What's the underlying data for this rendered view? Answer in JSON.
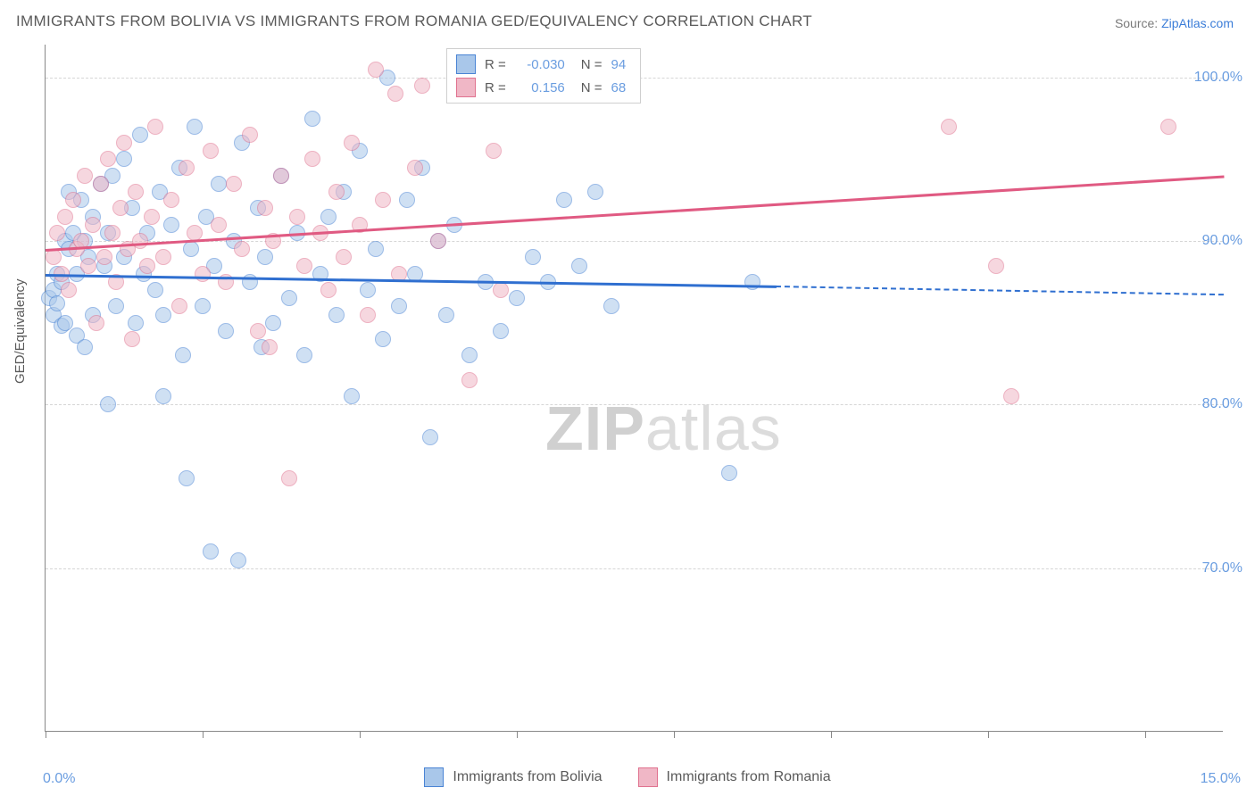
{
  "title": "IMMIGRANTS FROM BOLIVIA VS IMMIGRANTS FROM ROMANIA GED/EQUIVALENCY CORRELATION CHART",
  "source": {
    "label": "Source: ",
    "site": "ZipAtlas.com"
  },
  "watermark": {
    "zip": "ZIP",
    "atlas": "atlas"
  },
  "ylabel": "GED/Equivalency",
  "chart": {
    "type": "scatter",
    "xlim": [
      0,
      15
    ],
    "ylim": [
      60,
      102
    ],
    "x_ticks": [
      0,
      2,
      4,
      6,
      8,
      10,
      12,
      14
    ],
    "x_tick_labels": {
      "min": "0.0%",
      "max": "15.0%"
    },
    "y_ticks": [
      70,
      80,
      90,
      100
    ],
    "y_tick_labels": [
      "70.0%",
      "80.0%",
      "90.0%",
      "100.0%"
    ],
    "grid_color": "#d6d6d6",
    "background_color": "#ffffff",
    "axis_color": "#888888"
  },
  "series": [
    {
      "name": "Immigrants from Bolivia",
      "fill": "#a9c7ea",
      "stroke": "#4a84d4",
      "line_color": "#2f6fd0",
      "r_value": "-0.030",
      "n_value": "94",
      "regression": {
        "x1": 0,
        "y1": 88.0,
        "x2_solid": 9.3,
        "y2_solid": 87.3,
        "x2": 15,
        "y2": 86.8
      },
      "points": [
        [
          0.05,
          86.5
        ],
        [
          0.1,
          87.0
        ],
        [
          0.1,
          85.5
        ],
        [
          0.15,
          88.0
        ],
        [
          0.15,
          86.2
        ],
        [
          0.2,
          87.5
        ],
        [
          0.2,
          84.8
        ],
        [
          0.25,
          90.0
        ],
        [
          0.25,
          85.0
        ],
        [
          0.3,
          89.5
        ],
        [
          0.3,
          93.0
        ],
        [
          0.35,
          90.5
        ],
        [
          0.4,
          88.0
        ],
        [
          0.4,
          84.2
        ],
        [
          0.45,
          92.5
        ],
        [
          0.5,
          90.0
        ],
        [
          0.5,
          83.5
        ],
        [
          0.55,
          89.0
        ],
        [
          0.6,
          91.5
        ],
        [
          0.6,
          85.5
        ],
        [
          0.7,
          93.5
        ],
        [
          0.75,
          88.5
        ],
        [
          0.8,
          90.5
        ],
        [
          0.8,
          80.0
        ],
        [
          0.85,
          94.0
        ],
        [
          0.9,
          86.0
        ],
        [
          1.0,
          95.0
        ],
        [
          1.0,
          89.0
        ],
        [
          1.1,
          92.0
        ],
        [
          1.15,
          85.0
        ],
        [
          1.2,
          96.5
        ],
        [
          1.25,
          88.0
        ],
        [
          1.3,
          90.5
        ],
        [
          1.4,
          87.0
        ],
        [
          1.45,
          93.0
        ],
        [
          1.5,
          85.5
        ],
        [
          1.5,
          80.5
        ],
        [
          1.6,
          91.0
        ],
        [
          1.7,
          94.5
        ],
        [
          1.75,
          83.0
        ],
        [
          1.8,
          75.5
        ],
        [
          1.85,
          89.5
        ],
        [
          1.9,
          97.0
        ],
        [
          2.0,
          86.0
        ],
        [
          2.05,
          91.5
        ],
        [
          2.1,
          71.0
        ],
        [
          2.15,
          88.5
        ],
        [
          2.2,
          93.5
        ],
        [
          2.3,
          84.5
        ],
        [
          2.4,
          90.0
        ],
        [
          2.45,
          70.5
        ],
        [
          2.5,
          96.0
        ],
        [
          2.6,
          87.5
        ],
        [
          2.7,
          92.0
        ],
        [
          2.75,
          83.5
        ],
        [
          2.8,
          89.0
        ],
        [
          2.9,
          85.0
        ],
        [
          3.0,
          94.0
        ],
        [
          3.1,
          86.5
        ],
        [
          3.2,
          90.5
        ],
        [
          3.3,
          83.0
        ],
        [
          3.4,
          97.5
        ],
        [
          3.5,
          88.0
        ],
        [
          3.6,
          91.5
        ],
        [
          3.7,
          85.5
        ],
        [
          3.8,
          93.0
        ],
        [
          3.9,
          80.5
        ],
        [
          4.0,
          95.5
        ],
        [
          4.1,
          87.0
        ],
        [
          4.2,
          89.5
        ],
        [
          4.3,
          84.0
        ],
        [
          4.35,
          100.0
        ],
        [
          4.5,
          86.0
        ],
        [
          4.6,
          92.5
        ],
        [
          4.7,
          88.0
        ],
        [
          4.8,
          94.5
        ],
        [
          4.9,
          78.0
        ],
        [
          5.0,
          90.0
        ],
        [
          5.1,
          85.5
        ],
        [
          5.2,
          91.0
        ],
        [
          5.4,
          83.0
        ],
        [
          5.6,
          87.5
        ],
        [
          5.8,
          84.5
        ],
        [
          6.0,
          86.5
        ],
        [
          6.2,
          89.0
        ],
        [
          6.4,
          87.5
        ],
        [
          6.6,
          92.5
        ],
        [
          6.8,
          88.5
        ],
        [
          7.0,
          93.0
        ],
        [
          7.2,
          86.0
        ],
        [
          8.7,
          75.8
        ],
        [
          9.0,
          87.5
        ]
      ]
    },
    {
      "name": "Immigrants from Romania",
      "fill": "#f0b7c6",
      "stroke": "#e0728f",
      "line_color": "#e05a82",
      "r_value": "0.156",
      "n_value": "68",
      "regression": {
        "x1": 0,
        "y1": 89.5,
        "x2_solid": 15,
        "y2_solid": 94.0,
        "x2": 15,
        "y2": 94.0
      },
      "points": [
        [
          0.1,
          89.0
        ],
        [
          0.15,
          90.5
        ],
        [
          0.2,
          88.0
        ],
        [
          0.25,
          91.5
        ],
        [
          0.3,
          87.0
        ],
        [
          0.35,
          92.5
        ],
        [
          0.4,
          89.5
        ],
        [
          0.45,
          90.0
        ],
        [
          0.5,
          94.0
        ],
        [
          0.55,
          88.5
        ],
        [
          0.6,
          91.0
        ],
        [
          0.65,
          85.0
        ],
        [
          0.7,
          93.5
        ],
        [
          0.75,
          89.0
        ],
        [
          0.8,
          95.0
        ],
        [
          0.85,
          90.5
        ],
        [
          0.9,
          87.5
        ],
        [
          0.95,
          92.0
        ],
        [
          1.0,
          96.0
        ],
        [
          1.05,
          89.5
        ],
        [
          1.1,
          84.0
        ],
        [
          1.15,
          93.0
        ],
        [
          1.2,
          90.0
        ],
        [
          1.3,
          88.5
        ],
        [
          1.35,
          91.5
        ],
        [
          1.4,
          97.0
        ],
        [
          1.5,
          89.0
        ],
        [
          1.6,
          92.5
        ],
        [
          1.7,
          86.0
        ],
        [
          1.8,
          94.5
        ],
        [
          1.9,
          90.5
        ],
        [
          2.0,
          88.0
        ],
        [
          2.1,
          95.5
        ],
        [
          2.2,
          91.0
        ],
        [
          2.3,
          87.5
        ],
        [
          2.4,
          93.5
        ],
        [
          2.5,
          89.5
        ],
        [
          2.6,
          96.5
        ],
        [
          2.7,
          84.5
        ],
        [
          2.8,
          92.0
        ],
        [
          2.85,
          83.5
        ],
        [
          2.9,
          90.0
        ],
        [
          3.0,
          94.0
        ],
        [
          3.1,
          75.5
        ],
        [
          3.2,
          91.5
        ],
        [
          3.3,
          88.5
        ],
        [
          3.4,
          95.0
        ],
        [
          3.5,
          90.5
        ],
        [
          3.6,
          87.0
        ],
        [
          3.7,
          93.0
        ],
        [
          3.8,
          89.0
        ],
        [
          3.9,
          96.0
        ],
        [
          4.0,
          91.0
        ],
        [
          4.1,
          85.5
        ],
        [
          4.2,
          100.5
        ],
        [
          4.3,
          92.5
        ],
        [
          4.45,
          99.0
        ],
        [
          4.5,
          88.0
        ],
        [
          4.7,
          94.5
        ],
        [
          4.8,
          99.5
        ],
        [
          5.0,
          90.0
        ],
        [
          5.4,
          81.5
        ],
        [
          5.7,
          95.5
        ],
        [
          5.8,
          87.0
        ],
        [
          11.5,
          97.0
        ],
        [
          12.1,
          88.5
        ],
        [
          12.3,
          80.5
        ],
        [
          14.3,
          97.0
        ]
      ]
    }
  ]
}
